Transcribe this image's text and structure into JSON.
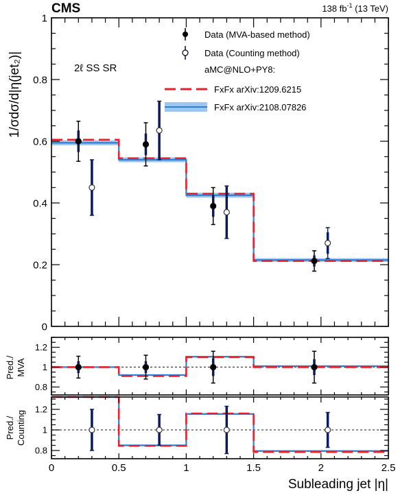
{
  "header": {
    "experiment": "CMS",
    "lumi_value": "138 fb",
    "lumi_exponent": "-1",
    "energy": " (13 TeV)"
  },
  "region_label": "2ℓ SS SR",
  "legend": {
    "data_mva": "Data (MVA-based method)",
    "data_counting": "Data (Counting method)",
    "generator": "aMC@NLO+PY8:",
    "fxfx_old": "FxFx arXiv:1209.6215",
    "fxfx_new": "FxFx arXiv:2108.07826"
  },
  "colors": {
    "fxfx_old": "#e8202a",
    "fxfx_new": "#2f7fd6",
    "band": "#9cc6f0",
    "data_err": "#0a1a5c",
    "reference": "#444444"
  },
  "chart_data": [
    {
      "type": "line",
      "panel": "main",
      "ylabel": "1/σdσ/d|η(jet₂)|",
      "xlim": [
        0,
        2.5
      ],
      "ylim": [
        0,
        1
      ],
      "yticks": [
        "0",
        "0.2",
        "0.4",
        "0.6",
        "0.8",
        "1"
      ],
      "bin_edges": [
        0,
        0.5,
        1,
        1.5,
        2.5
      ],
      "series": [
        {
          "name": "FxFx arXiv:1209.6215",
          "style": "dashed-step",
          "values": [
            0.605,
            0.545,
            0.43,
            0.212
          ]
        },
        {
          "name": "FxFx arXiv:2108.07826",
          "style": "step-band",
          "values": [
            0.595,
            0.54,
            0.425,
            0.215
          ],
          "band": [
            0.008,
            0.008,
            0.008,
            0.006
          ]
        },
        {
          "name": "Data (MVA-based method)",
          "style": "points-filled",
          "x": [
            0.2,
            0.7,
            1.2,
            1.95
          ],
          "y": [
            0.6,
            0.59,
            0.39,
            0.212
          ],
          "stat_err": [
            0.035,
            0.035,
            0.035,
            0.018
          ],
          "tot_err": [
            0.065,
            0.07,
            0.06,
            0.033
          ]
        },
        {
          "name": "Data (Counting method)",
          "style": "points-open",
          "x": [
            0.3,
            0.8,
            1.3,
            2.05
          ],
          "y": [
            0.45,
            0.635,
            0.37,
            0.27
          ],
          "stat_err": [
            0.09,
            0.095,
            0.085,
            0.035
          ],
          "tot_err": [
            0.09,
            0.095,
            0.085,
            0.05
          ]
        }
      ]
    },
    {
      "type": "line",
      "panel": "ratio-mva",
      "ylabel_line1": "Pred./",
      "ylabel_line2": "MVA",
      "xlim": [
        0,
        2.5
      ],
      "ylim": [
        0.72,
        1.3
      ],
      "yticks": [
        "0.8",
        "1",
        "1.2"
      ],
      "bin_edges": [
        0,
        0.5,
        1,
        1.5,
        2.5
      ],
      "series": [
        {
          "name": "FxFx arXiv:1209.6215",
          "style": "dashed-step",
          "values": [
            1.0,
            0.91,
            1.1,
            1.0
          ]
        },
        {
          "name": "FxFx arXiv:2108.07826",
          "style": "step-band",
          "values": [
            1.0,
            0.92,
            1.105,
            1.01
          ],
          "band": [
            0.008,
            0.008,
            0.008,
            0.008
          ]
        },
        {
          "name": "Data (MVA-based method)",
          "style": "points-filled",
          "x": [
            0.2,
            0.7,
            1.2,
            1.95
          ],
          "y": [
            1,
            1,
            1,
            1
          ],
          "stat_err": [
            0.06,
            0.06,
            0.09,
            0.08
          ],
          "tot_err": [
            0.11,
            0.12,
            0.16,
            0.16
          ]
        }
      ]
    },
    {
      "type": "line",
      "panel": "ratio-counting",
      "ylabel_line1": "Pred./",
      "ylabel_line2": "Counting",
      "xlabel": "Subleading jet |η|",
      "xlim": [
        0,
        2.5
      ],
      "ylim": [
        0.72,
        1.32
      ],
      "yticks": [
        "0.8",
        "1",
        "1.2"
      ],
      "xticks": [
        "0",
        "0.5",
        "1",
        "1.5",
        "2",
        "2.5"
      ],
      "bin_edges": [
        0,
        0.5,
        1,
        1.5,
        2.5
      ],
      "series": [
        {
          "name": "FxFx arXiv:1209.6215",
          "style": "dashed-step",
          "values": [
            1.32,
            0.845,
            1.16,
            0.785
          ]
        },
        {
          "name": "FxFx arXiv:2108.07826",
          "style": "step-band",
          "values": [
            1.32,
            0.85,
            1.155,
            0.795
          ],
          "band": [
            0.008,
            0.008,
            0.008,
            0.008
          ]
        },
        {
          "name": "Data (Counting method)",
          "style": "points-open",
          "x": [
            0.3,
            0.8,
            1.3,
            2.05
          ],
          "y": [
            1,
            1,
            1,
            1
          ],
          "stat_err": [
            0.2,
            0.15,
            0.23,
            0.17
          ],
          "tot_err": [
            0.2,
            0.15,
            0.23,
            0.17
          ]
        }
      ]
    }
  ]
}
